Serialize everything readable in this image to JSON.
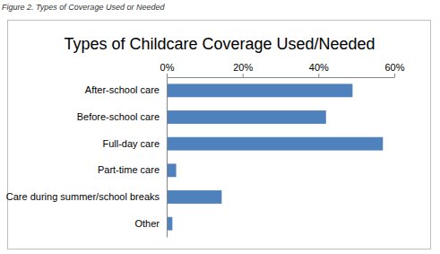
{
  "chart_data": {
    "type": "bar",
    "orientation": "horizontal",
    "caption": "Figure 2. Types of Coverage Used or Needed",
    "title": "Types of Childcare Coverage Used/Needed",
    "categories": [
      "After-school care",
      "Before-school care",
      "Full-day care",
      "Part-time care",
      "Care during summer/school breaks",
      "Other"
    ],
    "values": [
      49,
      42,
      57,
      2.5,
      14.5,
      1.5
    ],
    "color": "#4f81bd",
    "xlim": [
      0,
      60
    ],
    "xticks": [
      {
        "value": 0,
        "label": "0%"
      },
      {
        "value": 20,
        "label": "20%"
      },
      {
        "value": 40,
        "label": "40%"
      },
      {
        "value": 60,
        "label": "60%"
      }
    ],
    "grid": false
  }
}
